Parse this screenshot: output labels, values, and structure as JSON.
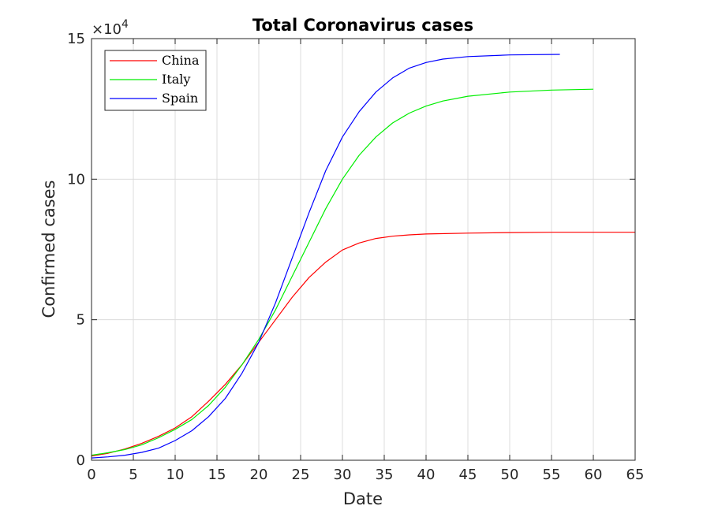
{
  "chart_data": {
    "type": "line",
    "title": "Total Coronavirus cases",
    "xlabel": "Date",
    "ylabel": "Confirmed cases",
    "y_exponent_label": "×10",
    "y_exponent_power": "4",
    "xlim": [
      0,
      65
    ],
    "ylim": [
      0,
      150000
    ],
    "x_ticks": [
      0,
      5,
      10,
      15,
      20,
      25,
      30,
      35,
      40,
      45,
      50,
      55,
      60,
      65
    ],
    "y_ticks": [
      0,
      50000,
      100000,
      150000
    ],
    "y_tick_labels": [
      "0",
      "5",
      "10",
      "15"
    ],
    "grid": true,
    "legend_position": "top-left",
    "series": [
      {
        "name": "China",
        "color": "#ff0000",
        "x": [
          0,
          2,
          4,
          6,
          8,
          10,
          12,
          14,
          16,
          18,
          20,
          22,
          24,
          26,
          28,
          30,
          32,
          34,
          36,
          38,
          40,
          45,
          50,
          55,
          60,
          65
        ],
        "y": [
          1500,
          2500,
          4000,
          6000,
          8500,
          11500,
          15500,
          21000,
          27000,
          34000,
          42000,
          50000,
          58000,
          65000,
          70500,
          74800,
          77300,
          78900,
          79700,
          80200,
          80500,
          80800,
          81000,
          81100,
          81100,
          81100
        ]
      },
      {
        "name": "Italy",
        "color": "#00ee00",
        "x": [
          0,
          2,
          4,
          6,
          8,
          10,
          12,
          14,
          16,
          18,
          20,
          22,
          24,
          26,
          28,
          30,
          32,
          34,
          36,
          38,
          40,
          42,
          45,
          50,
          55,
          60
        ],
        "y": [
          1800,
          2700,
          3800,
          5500,
          8000,
          11000,
          14500,
          19500,
          26000,
          34000,
          43000,
          53500,
          65500,
          77500,
          89500,
          100000,
          108500,
          115000,
          120000,
          123500,
          126000,
          127800,
          129500,
          131000,
          131700,
          132000
        ]
      },
      {
        "name": "Spain",
        "color": "#0000ff",
        "x": [
          0,
          2,
          4,
          6,
          8,
          10,
          12,
          14,
          16,
          18,
          20,
          22,
          24,
          26,
          28,
          30,
          32,
          34,
          36,
          38,
          40,
          42,
          45,
          50,
          56
        ],
        "y": [
          800,
          1200,
          1800,
          2800,
          4300,
          7000,
          10500,
          15500,
          22000,
          31000,
          42000,
          56000,
          72000,
          88000,
          103000,
          115000,
          124000,
          131000,
          136000,
          139500,
          141500,
          142700,
          143600,
          144200,
          144400
        ]
      }
    ]
  }
}
